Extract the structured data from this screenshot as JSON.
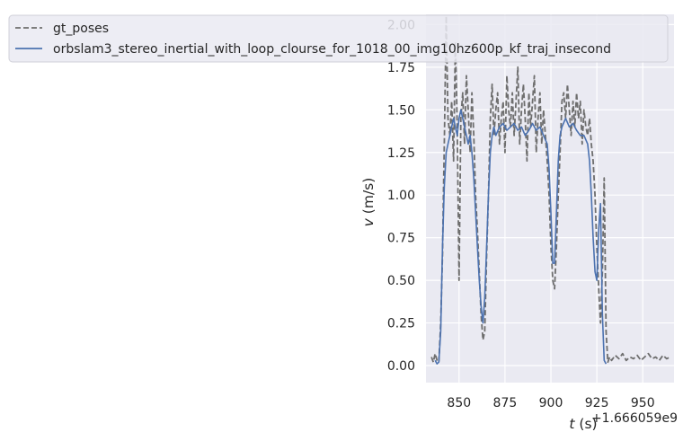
{
  "chart_data": {
    "type": "line",
    "title": "",
    "xlabel_var": "t",
    "xlabel_unit": " (s)",
    "ylabel_var": "v",
    "ylabel_unit": " (m/s)",
    "x_offset_label": "+1.666059e9",
    "xlim": [
      832,
      967
    ],
    "ylim": [
      -0.1,
      2.06
    ],
    "x_ticks": [
      850,
      875,
      900,
      925,
      950
    ],
    "x_tick_labels": [
      "850",
      "875",
      "900",
      "925",
      "950"
    ],
    "y_ticks": [
      0.0,
      0.25,
      0.5,
      0.75,
      1.0,
      1.25,
      1.5,
      1.75,
      2.0
    ],
    "y_tick_labels": [
      "0.00",
      "0.25",
      "0.50",
      "0.75",
      "1.00",
      "1.25",
      "1.50",
      "1.75",
      "2.00"
    ],
    "grid": true,
    "legend_position": "top-left",
    "series": [
      {
        "name": "gt_poses",
        "color": "#6e6e6e",
        "dash": "dashed",
        "x": [
          835,
          836,
          837,
          838,
          839,
          840,
          841,
          841.5,
          842,
          843,
          844,
          845,
          846,
          847,
          848,
          849,
          850,
          851,
          852,
          853,
          854,
          855,
          856,
          857,
          858,
          859,
          860,
          861,
          862,
          863,
          864,
          865,
          866,
          867,
          868,
          869,
          870,
          871,
          872,
          873,
          874,
          875,
          876,
          877,
          878,
          879,
          880,
          881,
          882,
          883,
          884,
          885,
          886,
          887,
          888,
          889,
          890,
          891,
          892,
          893,
          894,
          895,
          896,
          897,
          898,
          899,
          900,
          901,
          902,
          903,
          904,
          905,
          906,
          907,
          908,
          909,
          910,
          911,
          912,
          913,
          914,
          915,
          916,
          917,
          918,
          919,
          920,
          921,
          922,
          923,
          924,
          925,
          926,
          927,
          928,
          929,
          930,
          931,
          932,
          933,
          935,
          937,
          939,
          941,
          943,
          945,
          947,
          949,
          951,
          953,
          955,
          957,
          959,
          961,
          963,
          965
        ],
        "y": [
          0.05,
          0.02,
          0.07,
          0.03,
          0.02,
          0.25,
          0.65,
          1.0,
          1.3,
          2.05,
          1.45,
          1.35,
          1.55,
          1.2,
          1.9,
          1.4,
          0.5,
          1.45,
          1.6,
          1.3,
          1.7,
          1.5,
          1.25,
          1.6,
          1.35,
          1.0,
          0.8,
          0.55,
          0.3,
          0.15,
          0.2,
          0.65,
          1.0,
          1.45,
          1.65,
          1.35,
          1.5,
          1.6,
          1.3,
          1.45,
          1.55,
          1.25,
          1.7,
          1.5,
          1.4,
          1.6,
          1.35,
          1.55,
          1.75,
          1.3,
          1.5,
          1.65,
          1.45,
          1.2,
          1.6,
          1.4,
          1.55,
          1.7,
          1.25,
          1.45,
          1.6,
          1.3,
          1.5,
          1.35,
          1.2,
          1.0,
          0.7,
          0.5,
          0.45,
          0.7,
          1.0,
          1.25,
          1.55,
          1.6,
          1.45,
          1.65,
          1.5,
          1.35,
          1.55,
          1.4,
          1.6,
          1.45,
          1.55,
          1.3,
          1.5,
          1.4,
          1.35,
          1.45,
          1.3,
          1.2,
          1.0,
          0.7,
          0.45,
          0.25,
          0.55,
          1.1,
          0.2,
          0.02,
          0.05,
          0.03,
          0.06,
          0.04,
          0.07,
          0.03,
          0.05,
          0.04,
          0.06,
          0.03,
          0.05,
          0.07,
          0.04,
          0.05,
          0.03,
          0.06,
          0.04,
          0.05
        ]
      },
      {
        "name": "orbslam3_stereo_inertial_with_loop_clourse_for_1018_00_img10hz600p_kf_traj_insecond",
        "color": "#4c72b0",
        "dash": "solid",
        "x": [
          837,
          838,
          839,
          840,
          841,
          842,
          843,
          844,
          845,
          846,
          847,
          848,
          849,
          850,
          851,
          852,
          853,
          854,
          855,
          856,
          857,
          858,
          859,
          860,
          861,
          862,
          863,
          864,
          865,
          866,
          867,
          868,
          869,
          870,
          872,
          874,
          876,
          878,
          880,
          882,
          884,
          886,
          888,
          890,
          892,
          894,
          896,
          898,
          899,
          900,
          901,
          902,
          903,
          904,
          905,
          906,
          908,
          910,
          912,
          914,
          916,
          918,
          920,
          921,
          922,
          923,
          924,
          925,
          926,
          927,
          928,
          929,
          930
        ],
        "y": [
          0.03,
          0.01,
          0.02,
          0.2,
          0.7,
          1.05,
          1.25,
          1.3,
          1.35,
          1.4,
          1.45,
          1.4,
          1.35,
          1.45,
          1.5,
          1.45,
          1.4,
          1.35,
          1.3,
          1.35,
          1.25,
          1.1,
          0.9,
          0.7,
          0.5,
          0.35,
          0.25,
          0.4,
          0.7,
          1.0,
          1.25,
          1.35,
          1.4,
          1.35,
          1.4,
          1.42,
          1.38,
          1.4,
          1.42,
          1.38,
          1.4,
          1.35,
          1.38,
          1.42,
          1.38,
          1.4,
          1.35,
          1.3,
          1.15,
          0.9,
          0.6,
          0.6,
          0.9,
          1.2,
          1.35,
          1.4,
          1.45,
          1.4,
          1.42,
          1.38,
          1.35,
          1.35,
          1.3,
          1.2,
          1.0,
          0.75,
          0.55,
          0.5,
          0.8,
          0.95,
          0.3,
          0.03,
          0.01
        ]
      }
    ]
  }
}
